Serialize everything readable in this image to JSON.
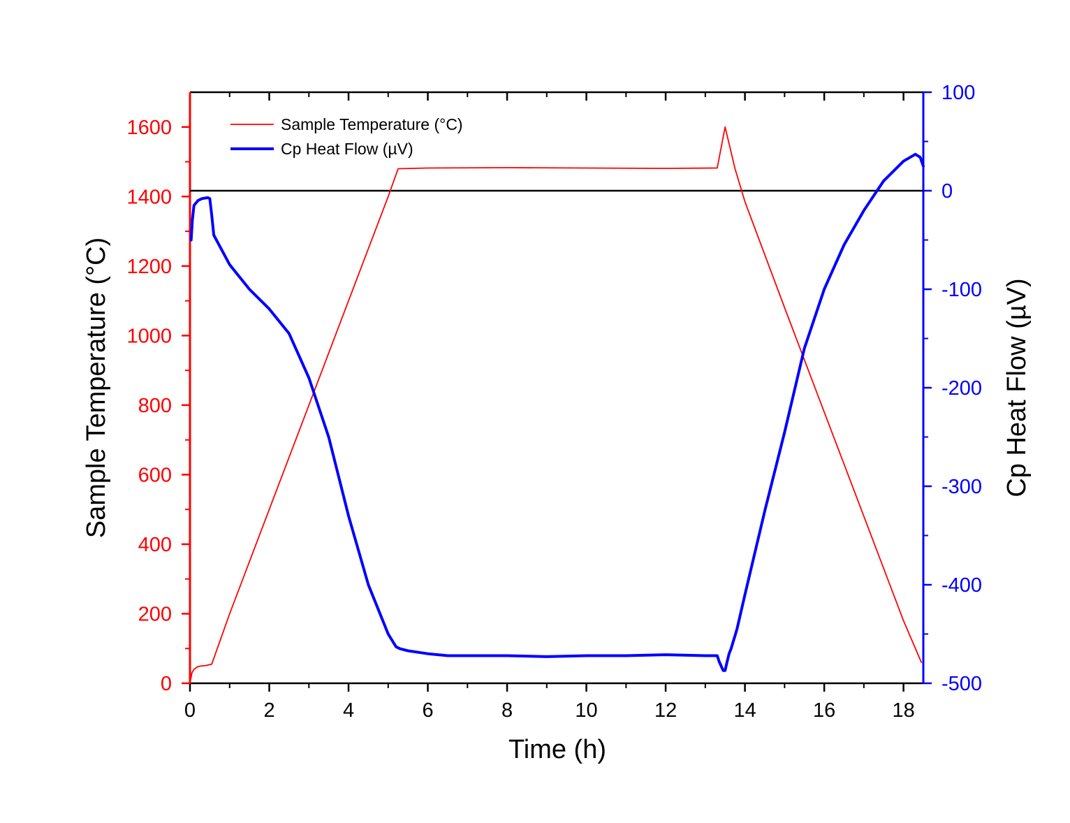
{
  "chart_data": {
    "type": "line",
    "title": "",
    "xlabel": "Time (h)",
    "ylabel_left": "Sample Temperature (°C)",
    "ylabel_right": "Cp Heat Flow (µV)",
    "xlim": [
      0,
      18.5
    ],
    "ylim_left": [
      0,
      1700
    ],
    "ylim_right": [
      -500,
      100
    ],
    "x_ticks": [
      0,
      2,
      4,
      6,
      8,
      10,
      12,
      14,
      16,
      18
    ],
    "y_left_ticks": [
      0,
      200,
      400,
      600,
      800,
      1000,
      1200,
      1400,
      1600
    ],
    "y_right_ticks": [
      -500,
      -400,
      -300,
      -200,
      -100,
      0,
      100
    ],
    "x_tick_labels": [
      "0",
      "2",
      "4",
      "6",
      "8",
      "10",
      "12",
      "14",
      "16",
      "18"
    ],
    "y_left_tick_labels": [
      "0",
      "200",
      "400",
      "600",
      "800",
      "1000",
      "1200",
      "1400",
      "1600"
    ],
    "y_right_tick_labels": [
      "-500",
      "-400",
      "-300",
      "-200",
      "-100",
      "0",
      "100"
    ],
    "reference_line": {
      "axis": "right",
      "value": 0,
      "color": "#000000"
    },
    "grid": false,
    "legend_position": "top-left",
    "series": [
      {
        "name": "Sample Temperature (°C)",
        "axis": "left",
        "color": "#ff0000",
        "x": [
          0,
          0.05,
          0.1,
          0.2,
          0.3,
          0.4,
          0.55,
          1.0,
          2.0,
          3.0,
          4.0,
          5.0,
          5.25,
          6.0,
          8.0,
          10.0,
          12.0,
          13.3,
          13.5,
          13.75,
          14.0,
          15.0,
          16.0,
          17.0,
          18.0,
          18.45
        ],
        "y": [
          0,
          30,
          40,
          48,
          50,
          51,
          55,
          200,
          500,
          800,
          1100,
          1400,
          1480,
          1482,
          1483,
          1482,
          1481,
          1482,
          1600,
          1480,
          1385,
          1080,
          780,
          480,
          180,
          60
        ]
      },
      {
        "name": "Cp Heat Flow (µV)",
        "axis": "right",
        "color": "#0000ff",
        "x": [
          0.03,
          0.06,
          0.1,
          0.2,
          0.3,
          0.45,
          0.5,
          0.55,
          0.6,
          0.8,
          1.0,
          1.5,
          2.0,
          2.5,
          3.0,
          3.5,
          4.0,
          4.5,
          5.0,
          5.2,
          5.3,
          5.5,
          6.0,
          6.5,
          7.0,
          8.0,
          9.0,
          10.0,
          11.0,
          12.0,
          13.0,
          13.3,
          13.35,
          13.45,
          13.5,
          13.55,
          13.6,
          13.65,
          13.8,
          14.0,
          14.5,
          15.0,
          15.5,
          16.0,
          16.5,
          17.0,
          17.5,
          18.0,
          18.3,
          18.42,
          18.5
        ],
        "y": [
          -50,
          -30,
          -15,
          -10,
          -8,
          -7,
          -8,
          -25,
          -45,
          -60,
          -75,
          -100,
          -120,
          -145,
          -190,
          -250,
          -330,
          -400,
          -450,
          -463,
          -465,
          -467,
          -470,
          -472,
          -472,
          -472,
          -473,
          -472,
          -472,
          -471,
          -472,
          -472,
          -478,
          -487,
          -487,
          -478,
          -470,
          -465,
          -445,
          -410,
          -325,
          -245,
          -160,
          -100,
          -55,
          -20,
          10,
          30,
          37,
          34,
          25
        ]
      }
    ]
  },
  "legend": {
    "entries": [
      "Sample Temperature (°C)",
      "Cp Heat Flow (µV)"
    ]
  },
  "colors": {
    "temperature": "#ff0000",
    "heat_flow": "#0000ff",
    "frame": "#000000"
  }
}
